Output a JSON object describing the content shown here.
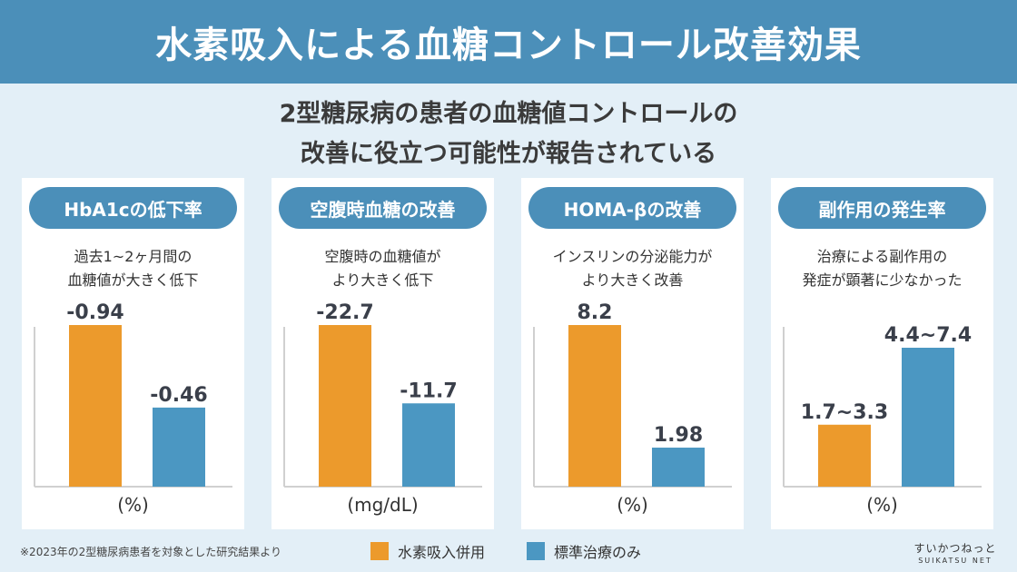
{
  "header": {
    "title": "水素吸入による血糖コントロール改善効果"
  },
  "subtitle": {
    "line1": "2型糖尿病の患者の血糖値コントロールの",
    "line2": "改善に役立つ可能性が報告されている"
  },
  "colors": {
    "hydrogen": "#ec9a2c",
    "standard": "#4b97c2",
    "header": "#4b8fb9"
  },
  "chart_data": [
    {
      "type": "bar",
      "title": "HbA1cの低下率",
      "description": [
        "過去1~2ヶ月間の",
        "血糖値が大きく低下"
      ],
      "unit": "(%)",
      "series": [
        {
          "name": "水素吸入併用",
          "value": -0.94,
          "label": "-0.94"
        },
        {
          "name": "標準治療のみ",
          "value": -0.46,
          "label": "-0.46"
        }
      ],
      "scale": "magnitude"
    },
    {
      "type": "bar",
      "title": "空腹時血糖の改善",
      "description": [
        "空腹時の血糖値が",
        "より大きく低下"
      ],
      "unit": "(mg/dL)",
      "series": [
        {
          "name": "水素吸入併用",
          "value": -22.7,
          "label": "-22.7"
        },
        {
          "name": "標準治療のみ",
          "value": -11.7,
          "label": "-11.7"
        }
      ],
      "scale": "magnitude"
    },
    {
      "type": "bar",
      "title": "HOMA-βの改善",
      "description": [
        "インスリンの分泌能力が",
        "より大きく改善"
      ],
      "unit": "(%)",
      "series": [
        {
          "name": "水素吸入併用",
          "value": 8.2,
          "label": "8.2"
        },
        {
          "name": "標準治療のみ",
          "value": 1.98,
          "label": "1.98"
        }
      ],
      "scale": "magnitude"
    },
    {
      "type": "bar",
      "title": "副作用の発生率",
      "description": [
        "治療による副作用の",
        "発症が顕著に少なかった"
      ],
      "unit": "(%)",
      "series": [
        {
          "name": "水素吸入併用",
          "value": [
            1.7,
            3.3
          ],
          "label": "1.7~3.3"
        },
        {
          "name": "標準治療のみ",
          "value": [
            4.4,
            7.4
          ],
          "label": "4.4~7.4"
        }
      ],
      "scale": "magnitude"
    }
  ],
  "legend": {
    "hydrogen_label": "水素吸入併用",
    "standard_label": "標準治療のみ"
  },
  "footnote": "※2023年の2型糖尿病患者を対象とした研究結果より",
  "brand": {
    "line1": "すいかつねっと",
    "line2": "SUIKATSU NET"
  }
}
